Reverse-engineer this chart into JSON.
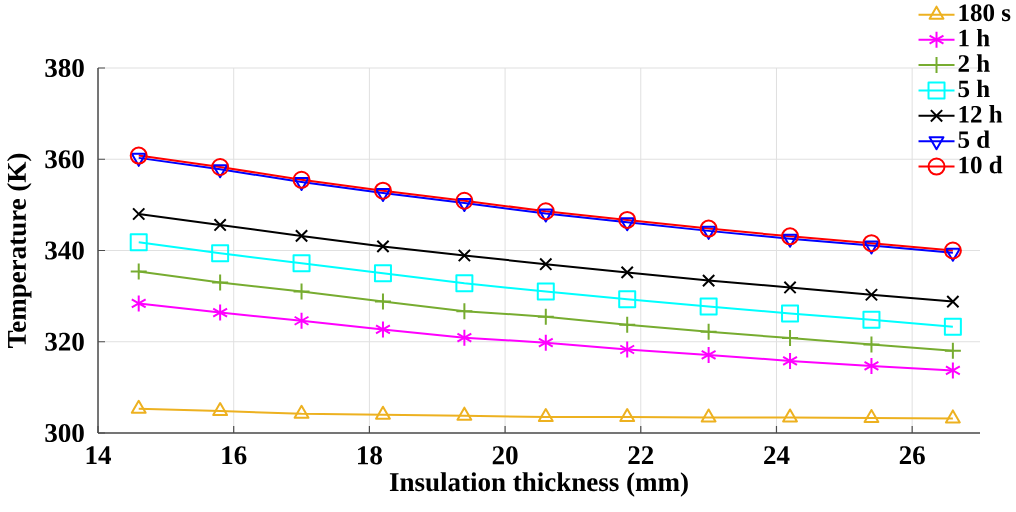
{
  "chart_data": {
    "type": "line",
    "xlabel": "Insulation thickness (mm)",
    "ylabel": "Temperature (K)",
    "x": [
      14.6,
      15.8,
      17.0,
      18.2,
      19.4,
      20.6,
      21.8,
      23.0,
      24.2,
      25.4,
      26.6
    ],
    "xlim": [
      14,
      27
    ],
    "xticks": [
      14,
      16,
      18,
      20,
      22,
      24,
      26
    ],
    "ylim": [
      300,
      380
    ],
    "yticks": [
      300,
      320,
      340,
      360,
      380
    ],
    "grid": true,
    "legend": "top right",
    "line_style": "solid",
    "series": [
      {
        "name": "180 s",
        "color": "#edb120",
        "marker": "triangle",
        "values": [
          305.3,
          304.8,
          304.2,
          304.0,
          303.8,
          303.5,
          303.5,
          303.4,
          303.4,
          303.3,
          303.2
        ]
      },
      {
        "name": "1 h",
        "color": "#ff00ff",
        "marker": "cross",
        "values": [
          328.4,
          326.4,
          324.6,
          322.7,
          320.9,
          319.8,
          318.3,
          317.1,
          315.8,
          314.7,
          313.7
        ]
      },
      {
        "name": "2 h",
        "color": "#77ac30",
        "marker": "plus",
        "values": [
          335.4,
          333.0,
          331.0,
          328.8,
          326.7,
          325.5,
          323.7,
          322.2,
          320.8,
          319.4,
          318.0
        ]
      },
      {
        "name": "5 h",
        "color": "#00ffff",
        "marker": "square",
        "values": [
          341.8,
          339.4,
          337.2,
          335.0,
          332.8,
          331.0,
          329.3,
          327.7,
          326.2,
          324.8,
          323.3
        ]
      },
      {
        "name": "12 h",
        "color": "#000000",
        "marker": "x",
        "values": [
          348.0,
          345.6,
          343.2,
          340.9,
          338.9,
          337.0,
          335.2,
          333.4,
          331.9,
          330.3,
          328.8
        ]
      },
      {
        "name": "5 d",
        "color": "#0000ff",
        "marker": "triangle-down",
        "values": [
          360.3,
          357.8,
          355.0,
          352.6,
          350.4,
          348.1,
          346.2,
          344.3,
          342.6,
          341.1,
          339.5
        ]
      },
      {
        "name": "10 d",
        "color": "#ff0000",
        "marker": "circle",
        "values": [
          360.8,
          358.3,
          355.5,
          353.1,
          350.9,
          348.6,
          346.7,
          344.8,
          343.1,
          341.6,
          340.0
        ]
      }
    ]
  }
}
